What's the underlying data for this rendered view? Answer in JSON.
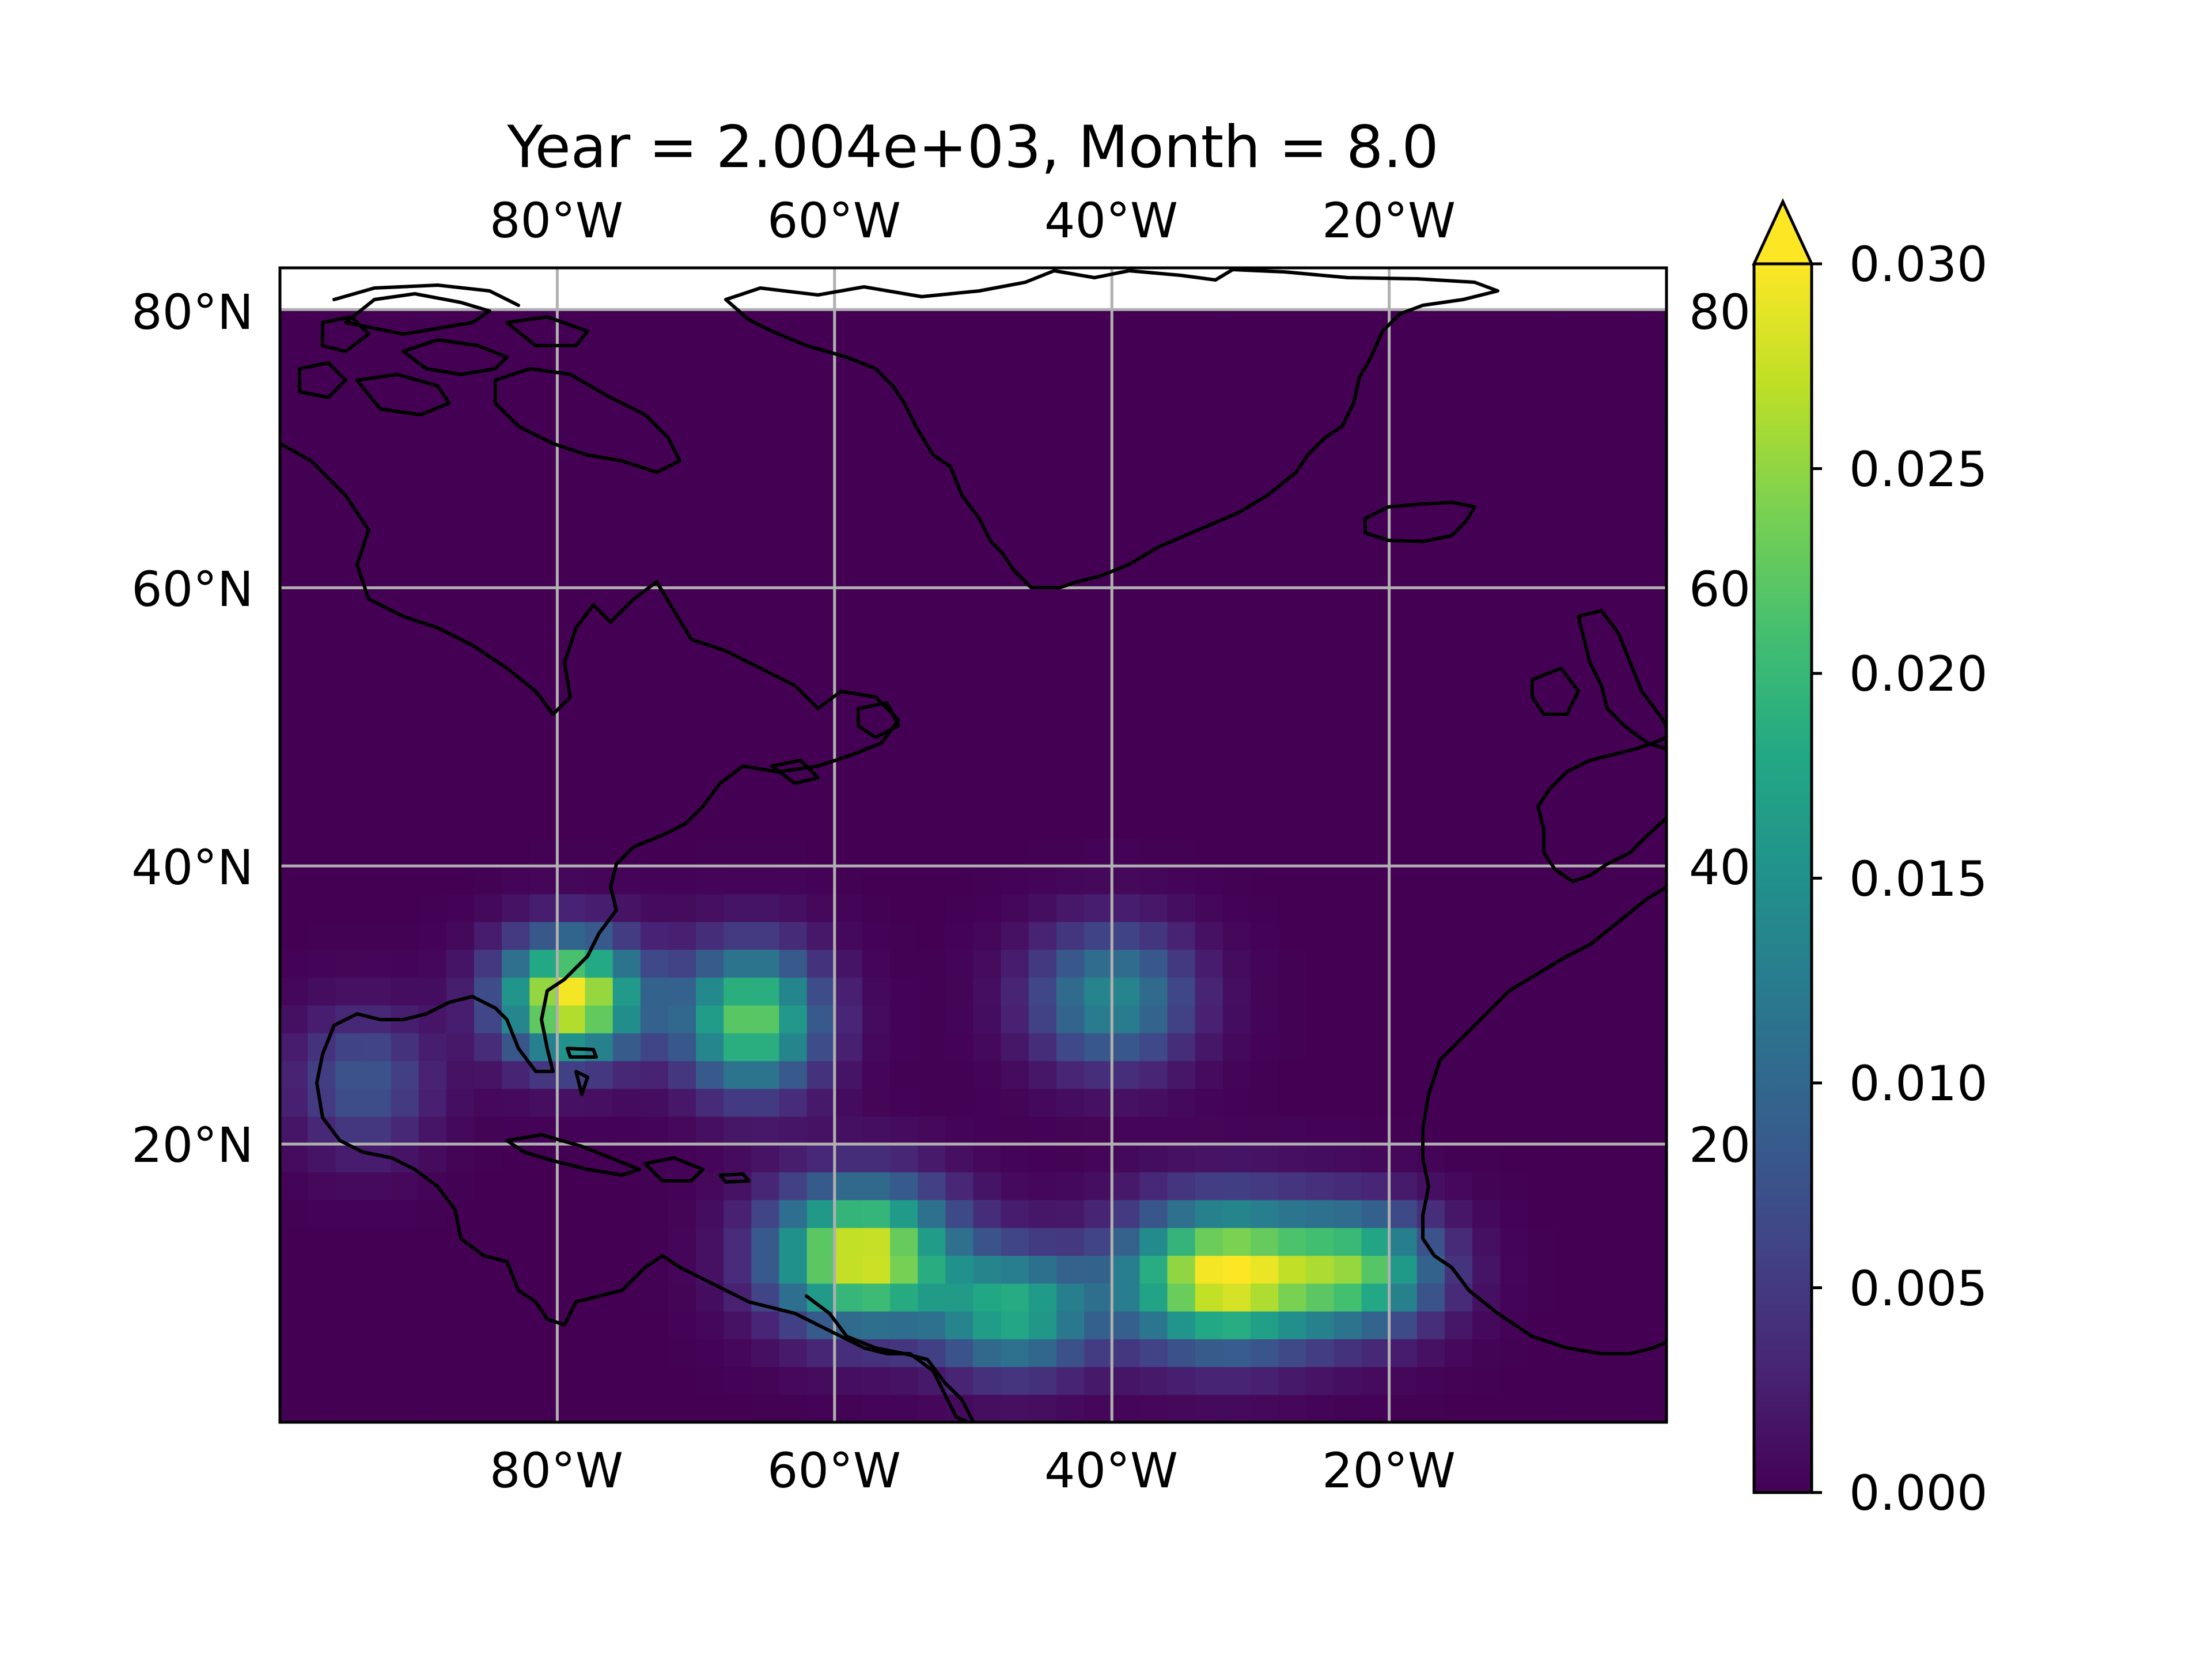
{
  "title": "Year = 2.004e+03, Month = 8.0",
  "map": {
    "projection": "PlateCarree",
    "extent": {
      "lon": [
        -100,
        0
      ],
      "lat": [
        0,
        83
      ]
    },
    "data_lat_max": 79,
    "gridlines": true,
    "coastlines": true,
    "lon_ticks": [
      -80,
      -60,
      -40,
      -20
    ],
    "lon_tick_labels": [
      "80°W",
      "60°W",
      "40°W",
      "20°W"
    ],
    "lat_ticks": [
      20,
      40,
      60,
      80
    ],
    "lat_tick_labels_left": [
      "20°N",
      "40°N",
      "60°N",
      "80°N"
    ],
    "lat_tick_labels_right": [
      "20",
      "40",
      "60",
      "80"
    ]
  },
  "colorbar": {
    "colormap": "viridis",
    "vmin": 0.0,
    "vmax": 0.03,
    "extend": "max",
    "ticks": [
      0.0,
      0.005,
      0.01,
      0.015,
      0.02,
      0.025,
      0.03
    ],
    "tick_labels": [
      "0.000",
      "0.005",
      "0.010",
      "0.015",
      "0.020",
      "0.025",
      "0.030"
    ]
  },
  "chart_data": {
    "type": "heatmap",
    "title": "Year = 2.004e+03, Month = 8.0",
    "field": "gridded density (approximate Gaussian blobs)",
    "blobs": [
      {
        "lon": -79,
        "lat": 30.5,
        "peak": 0.03,
        "sigma_lon": 3.5,
        "sigma_lat": 3.0
      },
      {
        "lon": -66,
        "lat": 29.0,
        "peak": 0.023,
        "sigma_lon": 3.5,
        "sigma_lat": 3.5
      },
      {
        "lon": -40,
        "lat": 30.5,
        "peak": 0.014,
        "sigma_lon": 4.0,
        "sigma_lat": 3.5
      },
      {
        "lon": -94,
        "lat": 24.5,
        "peak": 0.008,
        "sigma_lon": 3.5,
        "sigma_lat": 3.5
      },
      {
        "lon": -58,
        "lat": 12.0,
        "peak": 0.029,
        "sigma_lon": 4.5,
        "sigma_lat": 3.5
      },
      {
        "lon": -47,
        "lat": 8.0,
        "peak": 0.018,
        "sigma_lon": 4.0,
        "sigma_lat": 3.0
      },
      {
        "lon": -32,
        "lat": 10.5,
        "peak": 0.03,
        "sigma_lon": 5.0,
        "sigma_lat": 3.5
      },
      {
        "lon": -22,
        "lat": 11.0,
        "peak": 0.02,
        "sigma_lon": 4.0,
        "sigma_lat": 3.0
      }
    ]
  }
}
